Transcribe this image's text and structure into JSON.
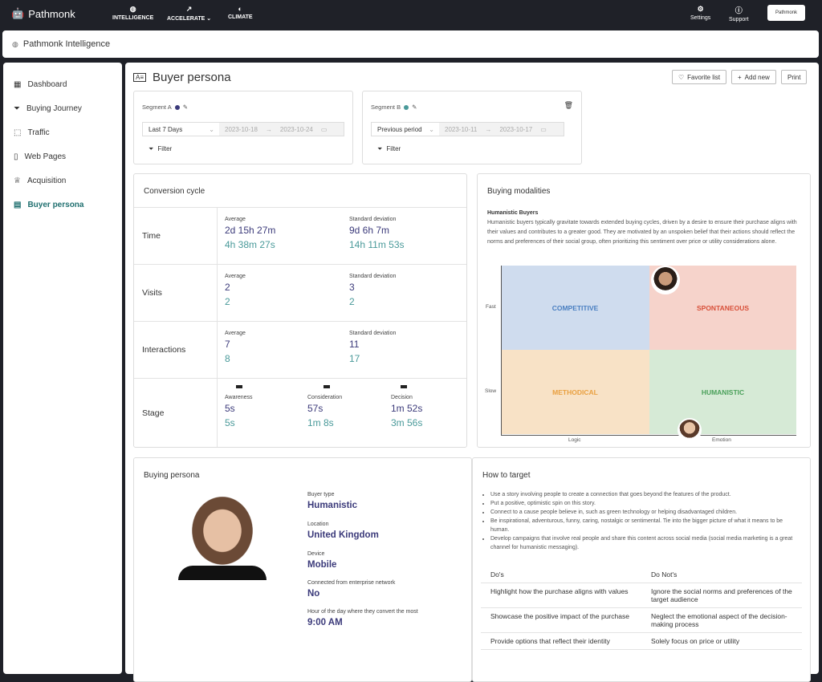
{
  "topbar": {
    "brand": "Pathmonk",
    "nav": [
      {
        "label": "INTELLIGENCE",
        "icon": "intelligence-icon"
      },
      {
        "label": "ACCELERATE",
        "icon": "chart-up-icon"
      },
      {
        "label": "CLIMATE",
        "icon": "globe-icon"
      }
    ],
    "settings": "Settings",
    "support": "Support",
    "account_logo": "Pathmonk"
  },
  "subbar": {
    "title": "Pathmonk Intelligence"
  },
  "sidebar": {
    "items": [
      {
        "label": "Dashboard",
        "icon": "grid-icon"
      },
      {
        "label": "Buying Journey",
        "icon": "funnel-icon"
      },
      {
        "label": "Traffic",
        "icon": "chart-icon"
      },
      {
        "label": "Web Pages",
        "icon": "page-icon"
      },
      {
        "label": "Acquisition",
        "icon": "trophy-icon"
      },
      {
        "label": "Buyer persona",
        "icon": "id-card-icon",
        "active": true
      }
    ]
  },
  "page": {
    "title": "Buyer persona",
    "favorite": "Favorite list",
    "add_new": "Add new",
    "print": "Print"
  },
  "segments": [
    {
      "label": "Segment A",
      "color": "#3b3a7a",
      "period": "Last 7 Days",
      "start": "2023-10-18",
      "end": "2023-10-24",
      "filter": "Filter"
    },
    {
      "label": "Segment B",
      "color": "#4a9a9a",
      "period": "Previous period",
      "start": "2023-10-11",
      "end": "2023-10-17",
      "filter": "Filter"
    }
  ],
  "conversion": {
    "title": "Conversion cycle",
    "avg": "Average",
    "sd": "Standard deviation",
    "rows": [
      {
        "label": "Time",
        "avg_a": "2d 15h 27m",
        "avg_b": "4h 38m 27s",
        "sd_a": "9d 6h 7m",
        "sd_b": "14h 11m 53s"
      },
      {
        "label": "Visits",
        "avg_a": "2",
        "avg_b": "2",
        "sd_a": "3",
        "sd_b": "2"
      },
      {
        "label": "Interactions",
        "avg_a": "7",
        "avg_b": "8",
        "sd_a": "11",
        "sd_b": "17"
      }
    ],
    "stage": {
      "label": "Stage",
      "items": [
        {
          "name": "Awareness",
          "a": "5s",
          "b": "5s"
        },
        {
          "name": "Consideration",
          "a": "57s",
          "b": "1m 8s"
        },
        {
          "name": "Decision",
          "a": "1m 52s",
          "b": "3m 56s"
        }
      ]
    }
  },
  "modalities": {
    "title": "Buying modalities",
    "heading": "Humanistic Buyers",
    "description": "Humanistic buyers typically gravitate towards extended buying cycles, driven by a desire to ensure their purchase aligns with their values and contributes to a greater good. They are motivated by an unspoken belief that their actions should reflect the norms and preferences of their social group, often prioritizing this sentiment over price or utility considerations alone.",
    "quadrants": [
      {
        "label": "COMPETITIVE",
        "bg": "#cfdcee",
        "fg": "#4a7fc1"
      },
      {
        "label": "SPONTANEOUS",
        "bg": "#f6d3cb",
        "fg": "#d8503a"
      },
      {
        "label": "METHODICAL",
        "bg": "#f8e2c6",
        "fg": "#e9a040"
      },
      {
        "label": "HUMANISTIC",
        "bg": "#d6ead6",
        "fg": "#4aa05a"
      }
    ],
    "y_fast": "Fast",
    "y_slow": "Slow",
    "x_logic": "Logic",
    "x_emotion": "Emotion"
  },
  "persona": {
    "title": "Buying persona",
    "fields": [
      {
        "label": "Buyer type",
        "value": "Humanistic"
      },
      {
        "label": "Location",
        "value": "United Kingdom"
      },
      {
        "label": "Device",
        "value": "Mobile"
      },
      {
        "label": "Connected from enterprise network",
        "value": "No"
      },
      {
        "label": "Hour of the day where they convert the most",
        "value": "9:00 AM"
      }
    ]
  },
  "target": {
    "title": "How to target",
    "bullets": [
      "Use a story involving people to create a connection that goes beyond the features of the product.",
      "Put a positive, optimistic spin on this story.",
      "Connect to a cause people believe in, such as green technology or helping disadvantaged children.",
      "Be inspirational, adventurous, funny, caring, nostalgic or sentimental. Tie into the bigger picture of what it means to be human.",
      "Develop campaigns that involve real people and share this content across social media (social media marketing is a great channel for humanistic messaging)."
    ],
    "dos_header": "Do's",
    "donts_header": "Do Not's",
    "rows": [
      {
        "do": "Highlight how the purchase aligns with values",
        "dont": "Ignore the social norms and preferences of the target audience"
      },
      {
        "do": "Showcase the positive impact of the purchase",
        "dont": "Neglect the emotional aspect of the decision-making process"
      },
      {
        "do": "Provide options that reflect their identity",
        "dont": "Solely focus on price or utility"
      }
    ]
  }
}
